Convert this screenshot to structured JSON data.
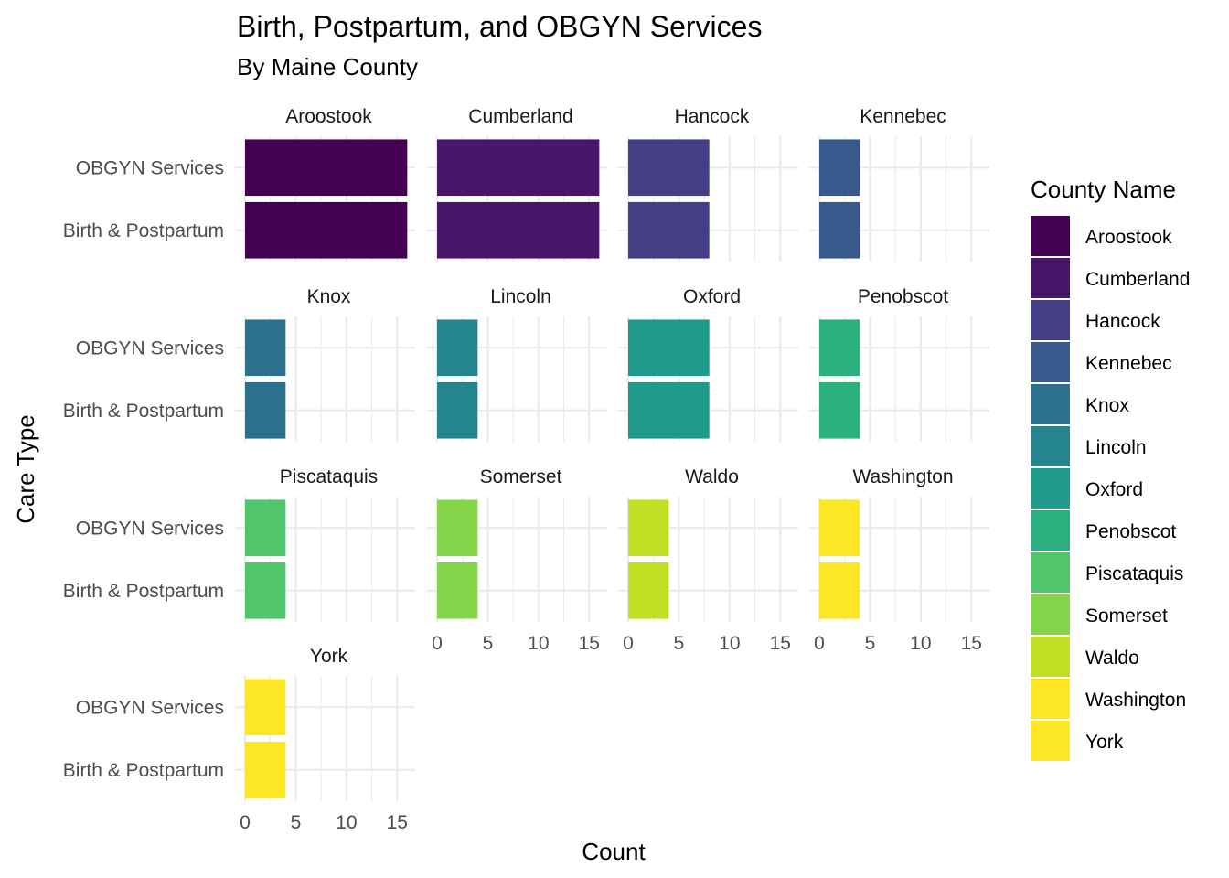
{
  "chart_data": {
    "type": "bar",
    "orientation": "horizontal",
    "faceted": true,
    "facet_ncol": 4,
    "title": "Birth, Postpartum, and OBGYN Services",
    "subtitle": "By Maine County",
    "xlabel": "Count",
    "ylabel": "Care Type",
    "xlim": [
      0,
      16.8
    ],
    "x_ticks": [
      "0",
      "5",
      "10",
      "15"
    ],
    "categories": [
      "Birth & Postpartum",
      "OBGYN Services"
    ],
    "legend_title": "County Name",
    "legend_position": "right",
    "grid": true,
    "series": [
      {
        "name": "Aroostook",
        "values": [
          16,
          16
        ],
        "color": "#440154"
      },
      {
        "name": "Cumberland",
        "values": [
          16,
          16
        ],
        "color": "#481568"
      },
      {
        "name": "Hancock",
        "values": [
          8,
          8
        ],
        "color": "#433E85"
      },
      {
        "name": "Kennebec",
        "values": [
          4,
          4
        ],
        "color": "#38598C"
      },
      {
        "name": "Knox",
        "values": [
          4,
          4
        ],
        "color": "#2D708E"
      },
      {
        "name": "Lincoln",
        "values": [
          4,
          4
        ],
        "color": "#25858E"
      },
      {
        "name": "Oxford",
        "values": [
          8,
          8
        ],
        "color": "#1E9B8A"
      },
      {
        "name": "Penobscot",
        "values": [
          4,
          4
        ],
        "color": "#2BB07F"
      },
      {
        "name": "Piscataquis",
        "values": [
          4,
          4
        ],
        "color": "#51C56A"
      },
      {
        "name": "Somerset",
        "values": [
          4,
          4
        ],
        "color": "#85D54A"
      },
      {
        "name": "Waldo",
        "values": [
          4,
          4
        ],
        "color": "#C2DF23"
      },
      {
        "name": "Washington",
        "values": [
          4,
          4
        ],
        "color": "#FDE725"
      },
      {
        "name": "York",
        "values": [
          4,
          4
        ],
        "color": "#FDE725"
      }
    ]
  }
}
